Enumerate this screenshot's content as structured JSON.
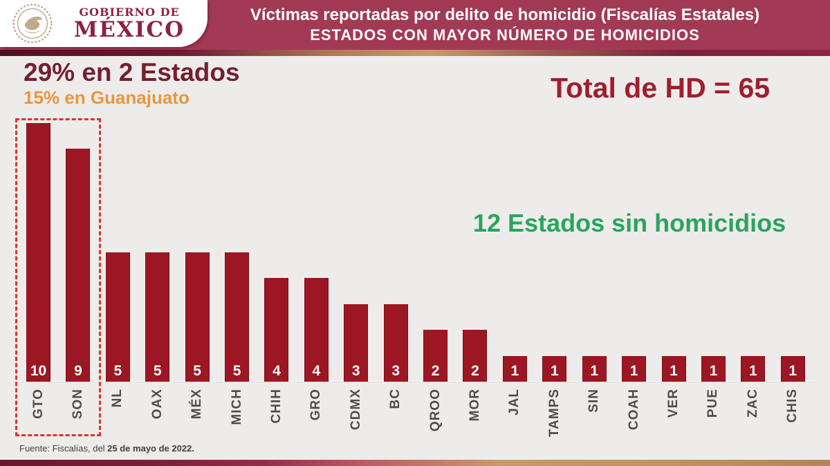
{
  "header": {
    "logo": {
      "line1": "GOBIERNO DE",
      "line2": "MÉXICO"
    },
    "title": "Víctimas reportadas por delito de homicidio (Fiscalías Estatales)",
    "subtitle": "ESTADOS CON MAYOR NÚMERO DE HOMICIDIOS"
  },
  "annotations": {
    "highlight_title": "29% en 2 Estados",
    "highlight_subtitle": "15% en Guanajuato",
    "total_label": "Total de HD = 65",
    "zero_states_label": "12 Estados sin homicidios"
  },
  "footer": {
    "source_prefix": "Fuente: Fiscalías, del ",
    "source_date": "25 de mayo de 2022."
  },
  "colors": {
    "header_band": "#A23A56",
    "bar": "#9D1623",
    "highlight_title": "#731F31",
    "highlight_subtitle": "#E9963D",
    "total_label": "#A01E2D",
    "zero_states_label": "#2AA45D",
    "dashed_box": "#D8342C",
    "background": "#EDECEA",
    "logo_text": "#8C2244"
  },
  "chart_data": {
    "type": "bar",
    "title": "Víctimas reportadas por delito de homicidio (Fiscalías Estatales)",
    "subtitle": "ESTADOS CON MAYOR NÚMERO DE HOMICIDIOS",
    "categories": [
      "GTO",
      "SON",
      "NL",
      "OAX",
      "MÉX",
      "MICH",
      "CHIH",
      "GRO",
      "CDMX",
      "BC",
      "QROO",
      "MOR",
      "JAL",
      "TAMPS",
      "SIN",
      "COAH",
      "VER",
      "PUE",
      "ZAC",
      "CHIS"
    ],
    "values": [
      10,
      9,
      5,
      5,
      5,
      5,
      4,
      4,
      3,
      3,
      2,
      2,
      1,
      1,
      1,
      1,
      1,
      1,
      1,
      1
    ],
    "xlabel": "",
    "ylabel": "",
    "ylim": [
      0,
      10
    ],
    "total": 65,
    "value_labels": "inside-bottom, white",
    "bar_color": "#9D1623",
    "grid": false,
    "legend": false,
    "highlight_box_categories": [
      "GTO",
      "SON"
    ]
  }
}
